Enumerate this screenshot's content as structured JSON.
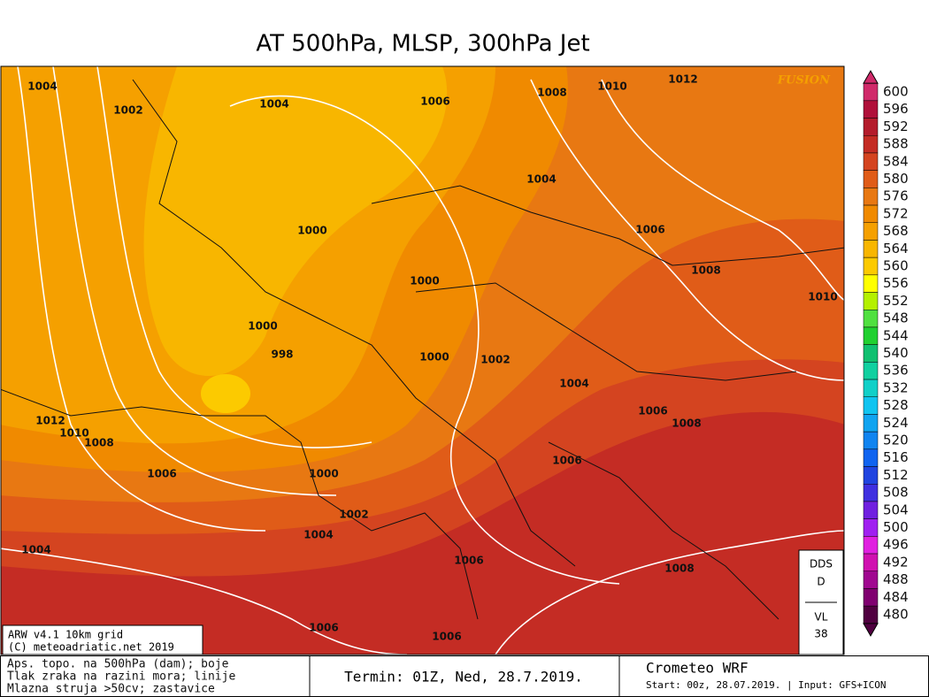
{
  "header": {
    "title": "AT 500hPa, MLSP, 300hPa Jet"
  },
  "logo": "FUSION",
  "colorbar": {
    "labels": [
      600,
      596,
      592,
      588,
      584,
      580,
      576,
      572,
      568,
      564,
      560,
      556,
      552,
      548,
      544,
      540,
      536,
      532,
      528,
      524,
      520,
      516,
      512,
      508,
      504,
      500,
      496,
      492,
      488,
      484,
      480
    ],
    "colors": [
      "#d02a6a",
      "#b0103a",
      "#b41c2c",
      "#c42c24",
      "#d44420",
      "#e05c18",
      "#e87812",
      "#f08a00",
      "#f5a000",
      "#f8b600",
      "#fcca00",
      "#ffff00",
      "#b4f000",
      "#50e040",
      "#20d030",
      "#10c070",
      "#10d0a0",
      "#10d0c8",
      "#10c4f0",
      "#10a4f0",
      "#1084f0",
      "#1064f0",
      "#2044e0",
      "#4030e0",
      "#7020e0",
      "#a020f0",
      "#e020e0",
      "#d010b0",
      "#a00890",
      "#800070",
      "#500040"
    ]
  },
  "isobar_labels": [
    "1004",
    "1002",
    "1004",
    "1006",
    "1008",
    "1010",
    "1012",
    "1004",
    "1000",
    "1006",
    "1000",
    "1008",
    "1010",
    "1000",
    "998",
    "1000",
    "1002",
    "1004",
    "1006",
    "1008",
    "1012",
    "1010",
    "1008",
    "1006",
    "1000",
    "1002",
    "1004",
    "1006",
    "1004",
    "1008",
    "1006",
    "1006",
    "1006"
  ],
  "model_info": [
    "ARW v4.1 10km grid",
    "(C) meteoadriatic.net 2019"
  ],
  "station_box": [
    "DDS",
    "D",
    "VL",
    "38"
  ],
  "footer": {
    "legend_lines": [
      "Aps. topo. na 500hPa (dam); boje",
      "Tlak zraka na razini mora; linije",
      "Mlazna struja >50cv; zastavice"
    ],
    "termin": "Termin: 01Z, Ned, 28.7.2019.",
    "brand": "Crometeo WRF",
    "run_info": "Start: 00z, 28.07.2019. | Input: GFS+ICON"
  }
}
